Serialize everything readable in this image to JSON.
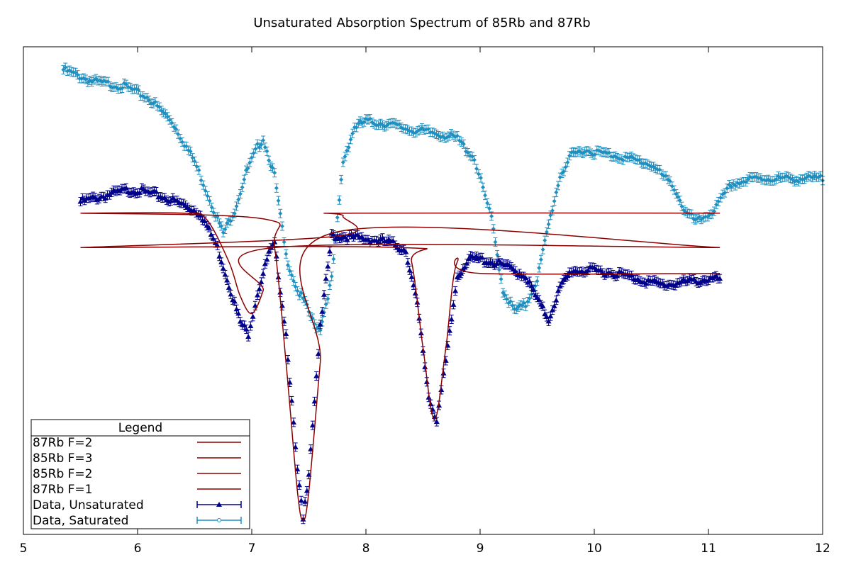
{
  "chart_data": {
    "type": "line",
    "title": "Unsaturated Absorption Spectrum of 85Rb and 87Rb",
    "xlabel": "",
    "ylabel": "",
    "xlim": [
      5,
      12
    ],
    "ylim": [
      -1.0,
      0.7
    ],
    "x_ticks": [
      "5",
      "6",
      "7",
      "8",
      "9",
      "10",
      "11",
      "12"
    ],
    "y_ticks_shown": false,
    "grid": false,
    "legend": {
      "title": "Legend",
      "position": "bottom-left",
      "entries": [
        "87Rb F=2",
        "85Rb F=3",
        "85Rb F=2",
        "87Rb F=1",
        "Data, Unsaturated",
        "Data, Saturated"
      ]
    },
    "series": [
      {
        "name": "87Rb F=2",
        "kind": "fit",
        "color": "#8b0000",
        "x": [
          5.5,
          6.4,
          6.6,
          6.8,
          6.9,
          7.0,
          7.1,
          7.2,
          11.1
        ],
        "y": [
          0.12,
          0.12,
          0.1,
          -0.05,
          -0.17,
          -0.23,
          -0.15,
          0.0,
          0.0
        ]
      },
      {
        "name": "85Rb F=3",
        "kind": "fit",
        "color": "#8b0000",
        "x": [
          5.5,
          7.1,
          7.2,
          7.3,
          7.4,
          7.45,
          7.5,
          7.6,
          7.7,
          11.1
        ],
        "y": [
          0.12,
          0.1,
          0.0,
          -0.4,
          -0.85,
          -0.95,
          -0.85,
          -0.4,
          0.05,
          0.0
        ]
      },
      {
        "name": "85Rb F=2",
        "kind": "fit",
        "color": "#8b0000",
        "x": [
          5.5,
          8.3,
          8.4,
          8.5,
          8.6,
          8.7,
          8.8,
          9.0,
          11.1
        ],
        "y": [
          0.0,
          0.0,
          -0.05,
          -0.35,
          -0.6,
          -0.35,
          -0.05,
          -0.09,
          -0.09
        ],
        "xlim_fit": [
          5.5,
          11.1
        ]
      },
      {
        "name": "87Rb F=1",
        "kind": "fit",
        "color": "#8b0000",
        "x": [
          5.5,
          7.75,
          7.8,
          7.9,
          11.1
        ],
        "y": [
          0.0,
          0.04,
          0.11,
          0.12,
          0.12
        ]
      },
      {
        "name": "Data, Unsaturated",
        "kind": "data",
        "color": "#00008b",
        "marker": "triangle",
        "x": [
          5.5,
          5.7,
          5.9,
          6.0,
          6.2,
          6.4,
          6.55,
          6.7,
          6.8,
          6.9,
          6.97,
          7.05,
          7.15,
          7.2,
          7.3,
          7.4,
          7.45,
          7.5,
          7.6,
          7.7,
          7.8,
          8.0,
          8.2,
          8.35,
          8.45,
          8.55,
          8.62,
          8.7,
          8.8,
          8.9,
          9.0,
          9.2,
          9.4,
          9.5,
          9.6,
          9.7,
          9.8,
          10.0,
          10.2,
          10.4,
          10.6,
          10.8,
          11.0,
          11.1
        ],
        "y": [
          0.16,
          0.18,
          0.2,
          0.2,
          0.18,
          0.15,
          0.12,
          0.0,
          -0.13,
          -0.26,
          -0.3,
          -0.16,
          -0.02,
          0.01,
          -0.3,
          -0.78,
          -0.95,
          -0.78,
          -0.28,
          0.04,
          0.04,
          0.03,
          0.02,
          -0.01,
          -0.2,
          -0.52,
          -0.6,
          -0.4,
          -0.1,
          -0.04,
          -0.04,
          -0.06,
          -0.1,
          -0.18,
          -0.25,
          -0.14,
          -0.08,
          -0.08,
          -0.09,
          -0.11,
          -0.13,
          -0.12,
          -0.11,
          -0.11
        ]
      },
      {
        "name": "Data, Saturated",
        "kind": "data",
        "color": "#1f8fc0",
        "marker": "diamond",
        "x": [
          5.35,
          5.6,
          5.9,
          6.1,
          6.3,
          6.5,
          6.65,
          6.75,
          6.85,
          6.95,
          7.05,
          7.1,
          7.2,
          7.3,
          7.4,
          7.45,
          7.55,
          7.6,
          7.7,
          7.8,
          7.9,
          8.0,
          8.2,
          8.4,
          8.6,
          8.8,
          8.95,
          9.1,
          9.2,
          9.3,
          9.4,
          9.5,
          9.6,
          9.7,
          9.8,
          9.9,
          10.2,
          10.5,
          10.7,
          10.8,
          10.9,
          11.05,
          11.2,
          11.4,
          11.7,
          12.0
        ],
        "y": [
          0.62,
          0.58,
          0.56,
          0.52,
          0.44,
          0.3,
          0.15,
          0.05,
          0.13,
          0.26,
          0.35,
          0.38,
          0.25,
          -0.03,
          -0.15,
          -0.18,
          -0.27,
          -0.28,
          -0.11,
          0.3,
          0.42,
          0.44,
          0.43,
          0.41,
          0.4,
          0.38,
          0.31,
          0.1,
          -0.15,
          -0.22,
          -0.2,
          -0.11,
          0.08,
          0.25,
          0.32,
          0.34,
          0.32,
          0.29,
          0.21,
          0.12,
          0.09,
          0.13,
          0.22,
          0.24,
          0.24,
          0.24
        ]
      }
    ]
  }
}
